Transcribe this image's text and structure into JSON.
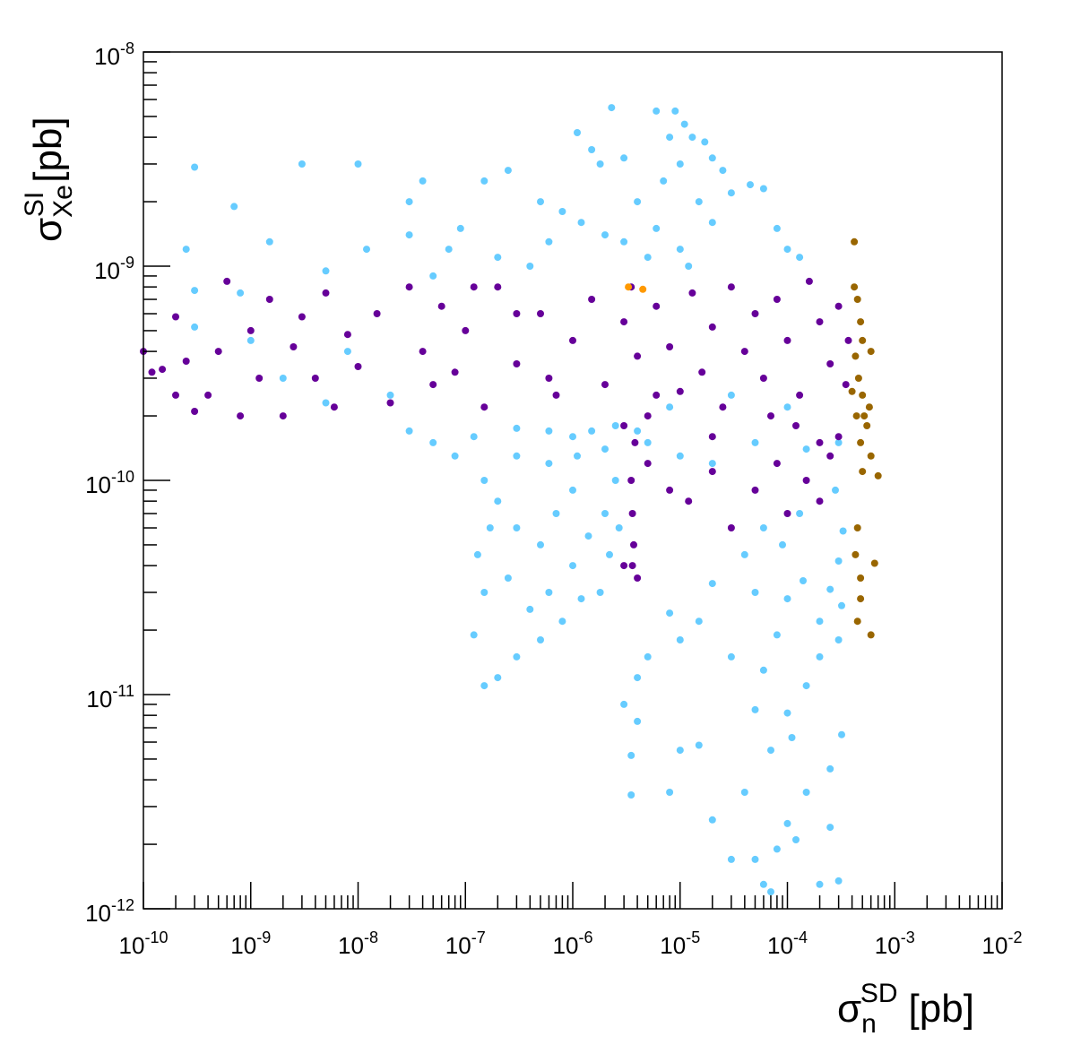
{
  "chart_data": {
    "type": "scatter",
    "title": "",
    "xlabel": {
      "base": "σ",
      "sub": "n",
      "sup": "SD",
      "unit": "[pb]"
    },
    "ylabel": {
      "base": "σ",
      "sub": "Xe",
      "sup": "SI",
      "unit": "[pb]"
    },
    "x_scale": "log",
    "y_scale": "log",
    "xlim": [
      1e-10,
      0.01
    ],
    "ylim": [
      1e-12,
      1e-08
    ],
    "x_ticks": [
      {
        "value": 1e-10,
        "base": "10",
        "exp": "-10"
      },
      {
        "value": 1e-09,
        "base": "10",
        "exp": "-9"
      },
      {
        "value": 1e-08,
        "base": "10",
        "exp": "-8"
      },
      {
        "value": 1e-07,
        "base": "10",
        "exp": "-7"
      },
      {
        "value": 1e-06,
        "base": "10",
        "exp": "-6"
      },
      {
        "value": 1e-05,
        "base": "10",
        "exp": "-5"
      },
      {
        "value": 0.0001,
        "base": "10",
        "exp": "-4"
      },
      {
        "value": 0.001,
        "base": "10",
        "exp": "-3"
      },
      {
        "value": 0.01,
        "base": "10",
        "exp": "-2"
      }
    ],
    "y_ticks": [
      {
        "value": 1e-12,
        "base": "10",
        "exp": "-12"
      },
      {
        "value": 1e-11,
        "base": "10",
        "exp": "-11"
      },
      {
        "value": 1e-10,
        "base": "10",
        "exp": "-10"
      },
      {
        "value": 1e-09,
        "base": "10",
        "exp": "-9"
      },
      {
        "value": 1e-08,
        "base": "10",
        "exp": "-8"
      }
    ],
    "grid": false,
    "legend": "none",
    "series": [
      {
        "color": "#66ccff",
        "points": [
          [
            1.2e-07,
            1.9e-11
          ],
          [
            1.5e-07,
            1.1e-11
          ],
          [
            2e-07,
            1.2e-11
          ],
          [
            3e-07,
            1.5e-11
          ],
          [
            5e-07,
            1.8e-11
          ],
          [
            3.5e-06,
            3.4e-12
          ],
          [
            3.5e-06,
            5.2e-12
          ],
          [
            4e-06,
            7.5e-12
          ],
          [
            3e-06,
            9e-12
          ],
          [
            8e-06,
            3.5e-12
          ],
          [
            1e-05,
            5.5e-12
          ],
          [
            1.5e-05,
            5.8e-12
          ],
          [
            2e-05,
            2.6e-12
          ],
          [
            3e-05,
            1.7e-12
          ],
          [
            4e-05,
            3.5e-12
          ],
          [
            5e-05,
            1.7e-12
          ],
          [
            6e-05,
            1.3e-12
          ],
          [
            7e-05,
            1.2e-12
          ],
          [
            8e-05,
            1.9e-12
          ],
          [
            0.0001,
            2.5e-12
          ],
          [
            0.00012,
            2.1e-12
          ],
          [
            0.00015,
            3.5e-12
          ],
          [
            0.0002,
            1.3e-12
          ],
          [
            0.00025,
            2.4e-12
          ],
          [
            0.0003,
            1.35e-12
          ],
          [
            0.00032,
            6.5e-12
          ],
          [
            7e-05,
            5.5e-12
          ],
          [
            0.00011,
            6.3e-12
          ],
          [
            0.00025,
            4.5e-12
          ],
          [
            5e-05,
            8.5e-12
          ],
          [
            0.0001,
            8.2e-12
          ],
          [
            0.00015,
            1.1e-11
          ],
          [
            0.0002,
            1.5e-11
          ],
          [
            0.0003,
            1.8e-11
          ],
          [
            0.00032,
            2.6e-11
          ],
          [
            6e-05,
            1.3e-11
          ],
          [
            8e-05,
            1.9e-11
          ],
          [
            0.0001,
            2.8e-11
          ],
          [
            0.00014,
            3.4e-11
          ],
          [
            0.0002,
            2.2e-11
          ],
          [
            0.00025,
            3.1e-11
          ],
          [
            0.0003,
            4.2e-11
          ],
          [
            0.00033,
            5.8e-11
          ],
          [
            5e-05,
            3e-11
          ],
          [
            4e-05,
            4.5e-11
          ],
          [
            2e-05,
            3.3e-11
          ],
          [
            1.5e-05,
            2.2e-11
          ],
          [
            1e-05,
            1.8e-11
          ],
          [
            8e-06,
            2.4e-11
          ],
          [
            5e-06,
            1.5e-11
          ],
          [
            4e-06,
            1.2e-11
          ],
          [
            3e-05,
            1.5e-11
          ],
          [
            6e-05,
            6e-11
          ],
          [
            9e-05,
            5e-11
          ],
          [
            0.00013,
            7e-11
          ],
          [
            0.00028,
            9e-11
          ],
          [
            3e-08,
            2e-09
          ],
          [
            1e-08,
            3e-09
          ],
          [
            3e-09,
            3e-09
          ],
          [
            3e-10,
            2.9e-09
          ],
          [
            7e-10,
            1.9e-09
          ],
          [
            1.5e-09,
            1.3e-09
          ],
          [
            2.5e-10,
            1.2e-09
          ],
          [
            3e-10,
            7.7e-10
          ],
          [
            8e-10,
            7.5e-10
          ],
          [
            5e-09,
            9.5e-10
          ],
          [
            1.2e-08,
            1.2e-09
          ],
          [
            4e-08,
            2.5e-09
          ],
          [
            3e-08,
            1.4e-09
          ],
          [
            3e-10,
            5.2e-10
          ],
          [
            2.3e-06,
            5.5e-09
          ],
          [
            6e-06,
            5.3e-09
          ],
          [
            9e-06,
            5.3e-09
          ],
          [
            1.1e-05,
            4.6e-09
          ],
          [
            8e-06,
            4e-09
          ],
          [
            1.3e-05,
            4e-09
          ],
          [
            1.7e-05,
            3.8e-09
          ],
          [
            2e-05,
            3.2e-09
          ],
          [
            2.5e-05,
            2.8e-09
          ],
          [
            3e-05,
            2.2e-09
          ],
          [
            4.5e-05,
            2.4e-09
          ],
          [
            6e-05,
            2.3e-09
          ],
          [
            8e-05,
            1.5e-09
          ],
          [
            0.0001,
            1.2e-09
          ],
          [
            0.00013,
            1.1e-09
          ],
          [
            1.1e-06,
            4.2e-09
          ],
          [
            1.5e-06,
            3.5e-09
          ],
          [
            1.8e-06,
            3e-09
          ],
          [
            1.5e-07,
            2.5e-09
          ],
          [
            2.5e-07,
            2.8e-09
          ],
          [
            5e-07,
            2e-09
          ],
          [
            8e-07,
            1.8e-09
          ],
          [
            1.2e-06,
            1.6e-09
          ],
          [
            2e-06,
            1.4e-09
          ],
          [
            3e-06,
            1.3e-09
          ],
          [
            5e-06,
            1.1e-09
          ],
          [
            7e-06,
            2.5e-09
          ],
          [
            4e-06,
            2e-09
          ],
          [
            3e-06,
            3.2e-09
          ],
          [
            1e-05,
            3e-09
          ],
          [
            1.5e-05,
            2e-09
          ],
          [
            2e-05,
            1.6e-09
          ],
          [
            1e-05,
            1.2e-09
          ],
          [
            6e-06,
            1.5e-09
          ],
          [
            1.2e-05,
            1e-09
          ],
          [
            7e-08,
            1.2e-09
          ],
          [
            5e-08,
            9e-10
          ],
          [
            9e-08,
            1.5e-09
          ],
          [
            2e-07,
            1.1e-09
          ],
          [
            4e-07,
            1e-09
          ],
          [
            6e-07,
            1.3e-09
          ],
          [
            3e-08,
            1.7e-10
          ],
          [
            5e-08,
            1.5e-10
          ],
          [
            8e-08,
            1.3e-10
          ],
          [
            1.2e-07,
            1.6e-10
          ],
          [
            3e-07,
            1.75e-10
          ],
          [
            6e-07,
            1.7e-10
          ],
          [
            1e-06,
            1.6e-10
          ],
          [
            1.5e-06,
            1.7e-10
          ],
          [
            2.5e-06,
            1.8e-10
          ],
          [
            1.5e-07,
            1e-10
          ],
          [
            2e-07,
            8e-11
          ],
          [
            3e-07,
            6e-11
          ],
          [
            5e-07,
            5e-11
          ],
          [
            1e-06,
            4e-11
          ],
          [
            1.8e-06,
            3e-11
          ],
          [
            2.2e-06,
            4.5e-11
          ],
          [
            1.3e-07,
            4.5e-11
          ],
          [
            1.5e-07,
            3e-11
          ],
          [
            2.5e-07,
            3.5e-11
          ],
          [
            4e-07,
            2.5e-11
          ],
          [
            6e-07,
            3e-11
          ],
          [
            8e-07,
            2.2e-11
          ],
          [
            1.2e-06,
            2.8e-11
          ],
          [
            1.4e-06,
            5.5e-11
          ],
          [
            2e-06,
            7e-11
          ],
          [
            2.5e-06,
            1e-10
          ],
          [
            1e-06,
            9e-11
          ],
          [
            6e-07,
            1.2e-10
          ],
          [
            3e-07,
            1.3e-10
          ],
          [
            1.7e-07,
            6e-11
          ],
          [
            7e-07,
            7e-11
          ],
          [
            1.1e-06,
            1.3e-10
          ],
          [
            2e-06,
            1.4e-10
          ],
          [
            2.7e-06,
            6e-11
          ],
          [
            5e-06,
            1.5e-10
          ],
          [
            1e-05,
            1.3e-10
          ],
          [
            2e-05,
            1.2e-10
          ],
          [
            5e-05,
            1.5e-10
          ],
          [
            0.00015,
            1.4e-10
          ],
          [
            0.0003,
            1.5e-10
          ],
          [
            8e-06,
            2.2e-10
          ],
          [
            3e-05,
            2.5e-10
          ],
          [
            0.0001,
            2.2e-10
          ],
          [
            4e-06,
            1.7e-10
          ],
          [
            5e-09,
            2.3e-10
          ],
          [
            2e-09,
            3e-10
          ],
          [
            8e-09,
            4e-10
          ],
          [
            2e-08,
            2.5e-10
          ],
          [
            1e-09,
            4.5e-10
          ]
        ]
      },
      {
        "color": "#660099",
        "points": [
          [
            1e-10,
            4e-10
          ],
          [
            1.2e-10,
            3.2e-10
          ],
          [
            1.5e-10,
            3.3e-10
          ],
          [
            2e-10,
            2.5e-10
          ],
          [
            2e-10,
            5.8e-10
          ],
          [
            2.5e-10,
            3.6e-10
          ],
          [
            3e-10,
            2.1e-10
          ],
          [
            4e-10,
            2.5e-10
          ],
          [
            5e-10,
            4e-10
          ],
          [
            6e-10,
            8.5e-10
          ],
          [
            8e-10,
            2e-10
          ],
          [
            1e-09,
            5e-10
          ],
          [
            1.2e-09,
            3e-10
          ],
          [
            1.5e-09,
            7e-10
          ],
          [
            2e-09,
            2e-10
          ],
          [
            2.5e-09,
            4.2e-10
          ],
          [
            3e-09,
            5.8e-10
          ],
          [
            4e-09,
            3e-10
          ],
          [
            5e-09,
            7.5e-10
          ],
          [
            6e-09,
            2.2e-10
          ],
          [
            8e-09,
            4.8e-10
          ],
          [
            1e-08,
            3.4e-10
          ],
          [
            1.5e-08,
            6e-10
          ],
          [
            2e-08,
            2.3e-10
          ],
          [
            3e-08,
            8e-10
          ],
          [
            4e-08,
            4e-10
          ],
          [
            5e-08,
            2.8e-10
          ],
          [
            6e-08,
            6.5e-10
          ],
          [
            8e-08,
            3.2e-10
          ],
          [
            1e-07,
            5e-10
          ],
          [
            1.5e-07,
            2.2e-10
          ],
          [
            2e-07,
            8e-10
          ],
          [
            3e-07,
            3.5e-10
          ],
          [
            5e-07,
            6e-10
          ],
          [
            7e-07,
            2.5e-10
          ],
          [
            1e-06,
            4.5e-10
          ],
          [
            1.5e-06,
            7e-10
          ],
          [
            2e-06,
            2.8e-10
          ],
          [
            3e-06,
            5.5e-10
          ],
          [
            3.5e-06,
            8e-10
          ],
          [
            4e-06,
            3.8e-10
          ],
          [
            5e-06,
            2e-10
          ],
          [
            6e-06,
            6.5e-10
          ],
          [
            8e-06,
            4.2e-10
          ],
          [
            1e-05,
            2.6e-10
          ],
          [
            1.3e-05,
            7.5e-10
          ],
          [
            1.6e-05,
            3.2e-10
          ],
          [
            2e-05,
            5.2e-10
          ],
          [
            2.5e-05,
            2.2e-10
          ],
          [
            3e-05,
            8e-10
          ],
          [
            4e-05,
            4e-10
          ],
          [
            5e-05,
            6e-10
          ],
          [
            6e-05,
            3e-10
          ],
          [
            8e-05,
            7e-10
          ],
          [
            0.0001,
            4.5e-10
          ],
          [
            0.00013,
            2.5e-10
          ],
          [
            0.00016,
            8.5e-10
          ],
          [
            0.0002,
            5.5e-10
          ],
          [
            0.00025,
            3.5e-10
          ],
          [
            0.0003,
            6.5e-10
          ],
          [
            0.00035,
            2.8e-10
          ],
          [
            0.00037,
            4.5e-10
          ],
          [
            3.5e-06,
            1e-10
          ],
          [
            3.6e-06,
            7e-11
          ],
          [
            3.7e-06,
            5e-11
          ],
          [
            3.6e-06,
            4e-11
          ],
          [
            3.8e-06,
            1.5e-10
          ],
          [
            4e-06,
            3.5e-11
          ],
          [
            3e-06,
            4e-11
          ],
          [
            5e-06,
            1.2e-10
          ],
          [
            8e-06,
            9e-11
          ],
          [
            1.2e-05,
            8e-11
          ],
          [
            2e-05,
            1.1e-10
          ],
          [
            3e-05,
            6e-11
          ],
          [
            5e-05,
            9e-11
          ],
          [
            8e-05,
            1.2e-10
          ],
          [
            0.0001,
            7e-11
          ],
          [
            0.00015,
            1e-10
          ],
          [
            0.0002,
            8e-11
          ],
          [
            0.00025,
            1.3e-10
          ],
          [
            0.0003,
            1.6e-10
          ],
          [
            3e-06,
            1.8e-10
          ],
          [
            6e-06,
            2.5e-10
          ],
          [
            2e-05,
            1.6e-10
          ],
          [
            7e-05,
            2e-10
          ],
          [
            0.00012,
            1.8e-10
          ],
          [
            0.0002,
            1.5e-10
          ],
          [
            6e-07,
            3e-10
          ],
          [
            3e-07,
            6e-10
          ],
          [
            1.2e-07,
            8e-10
          ]
        ]
      },
      {
        "color": "#996600",
        "points": [
          [
            0.00042,
            1.3e-09
          ],
          [
            0.00045,
            7e-10
          ],
          [
            0.00048,
            5.5e-10
          ],
          [
            0.0005,
            4.5e-10
          ],
          [
            0.00043,
            3.8e-10
          ],
          [
            0.00046,
            3e-10
          ],
          [
            0.0005,
            2.5e-10
          ],
          [
            0.00044,
            2e-10
          ],
          [
            0.00055,
            1.8e-10
          ],
          [
            0.00048,
            1.5e-10
          ],
          [
            0.0006,
            1.3e-10
          ],
          [
            0.0005,
            1.1e-10
          ],
          [
            0.0007,
            1.05e-10
          ],
          [
            0.0006,
            4e-10
          ],
          [
            0.00042,
            8e-10
          ],
          [
            0.00045,
            6e-11
          ],
          [
            0.00043,
            4.5e-11
          ],
          [
            0.00048,
            3.5e-11
          ],
          [
            0.00045,
            2.2e-11
          ],
          [
            0.00048,
            2.8e-11
          ],
          [
            0.0006,
            1.9e-11
          ],
          [
            0.00065,
            4.1e-11
          ],
          [
            0.00052,
            2e-10
          ],
          [
            0.0004,
            2.6e-10
          ],
          [
            0.00058,
            2.2e-10
          ]
        ]
      },
      {
        "color": "#ff9900",
        "points": [
          [
            3.3e-06,
            8e-10
          ],
          [
            4.5e-06,
            7.8e-10
          ]
        ]
      }
    ]
  }
}
